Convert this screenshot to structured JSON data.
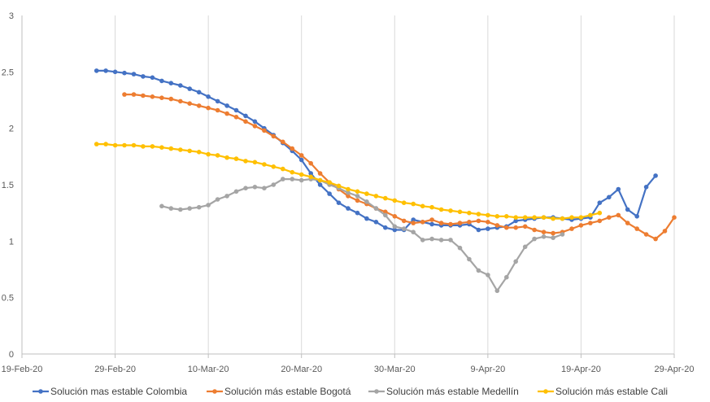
{
  "chart_data": {
    "type": "line",
    "title": "",
    "xlabel": "",
    "ylabel": "",
    "x_axis": {
      "start": "2020-02-19",
      "end": "2020-04-29",
      "tick_dates": [
        "2020-02-19",
        "2020-02-29",
        "2020-03-10",
        "2020-03-20",
        "2020-03-30",
        "2020-04-09",
        "2020-04-19",
        "2020-04-29"
      ],
      "tick_labels": [
        "19-Feb-20",
        "29-Feb-20",
        "10-Mar-20",
        "20-Mar-20",
        "30-Mar-20",
        "9-Apr-20",
        "19-Apr-20",
        "29-Apr-20"
      ]
    },
    "ylim": [
      0,
      3
    ],
    "y_ticks": [
      0,
      0.5,
      1,
      1.5,
      2,
      2.5,
      3
    ],
    "y_tick_labels": [
      "0",
      "0.5",
      "1",
      "1.5",
      "2",
      "2.5",
      "3"
    ],
    "grid": "vertical",
    "legend_position": "bottom",
    "series": [
      {
        "name": "Solución mas estable Colombia",
        "color": "#4472C4",
        "start_date": "2020-02-27",
        "values": [
          2.51,
          2.51,
          2.5,
          2.49,
          2.48,
          2.46,
          2.45,
          2.42,
          2.4,
          2.38,
          2.35,
          2.32,
          2.28,
          2.24,
          2.2,
          2.16,
          2.11,
          2.06,
          2.0,
          1.94,
          1.87,
          1.8,
          1.72,
          1.6,
          1.5,
          1.42,
          1.34,
          1.29,
          1.25,
          1.2,
          1.17,
          1.12,
          1.1,
          1.1,
          1.19,
          1.17,
          1.15,
          1.14,
          1.14,
          1.14,
          1.15,
          1.1,
          1.11,
          1.12,
          1.13,
          1.18,
          1.19,
          1.2,
          1.21,
          1.21,
          1.2,
          1.19,
          1.2,
          1.21,
          1.34,
          1.39,
          1.46,
          1.28,
          1.22,
          1.48,
          1.58
        ]
      },
      {
        "name": "Solución más estable Bogotá",
        "color": "#ED7D31",
        "start_date": "2020-03-01",
        "values": [
          2.3,
          2.3,
          2.29,
          2.28,
          2.27,
          2.26,
          2.24,
          2.22,
          2.2,
          2.18,
          2.16,
          2.13,
          2.1,
          2.06,
          2.02,
          1.98,
          1.93,
          1.88,
          1.82,
          1.76,
          1.69,
          1.6,
          1.52,
          1.46,
          1.4,
          1.36,
          1.33,
          1.29,
          1.26,
          1.22,
          1.18,
          1.16,
          1.17,
          1.19,
          1.16,
          1.15,
          1.16,
          1.17,
          1.18,
          1.17,
          1.14,
          1.12,
          1.12,
          1.13,
          1.1,
          1.08,
          1.07,
          1.08,
          1.11,
          1.14,
          1.16,
          1.18,
          1.21,
          1.23,
          1.16,
          1.11,
          1.06,
          1.02,
          1.09,
          1.21
        ]
      },
      {
        "name": "Solución más estable Medellín",
        "color": "#A5A5A5",
        "start_date": "2020-03-05",
        "values": [
          1.31,
          1.29,
          1.28,
          1.29,
          1.3,
          1.32,
          1.37,
          1.4,
          1.44,
          1.47,
          1.48,
          1.47,
          1.5,
          1.55,
          1.55,
          1.54,
          1.55,
          1.54,
          1.5,
          1.47,
          1.43,
          1.4,
          1.35,
          1.29,
          1.23,
          1.13,
          1.11,
          1.08,
          1.01,
          1.02,
          1.01,
          1.01,
          0.94,
          0.84,
          0.74,
          0.7,
          0.56,
          0.68,
          0.82,
          0.95,
          1.02,
          1.04,
          1.03,
          1.06
        ]
      },
      {
        "name": "Solución más estable Cali",
        "color": "#FFC000",
        "start_date": "2020-02-27",
        "values": [
          1.86,
          1.86,
          1.85,
          1.85,
          1.85,
          1.84,
          1.84,
          1.83,
          1.82,
          1.81,
          1.8,
          1.79,
          1.77,
          1.76,
          1.74,
          1.73,
          1.71,
          1.7,
          1.68,
          1.66,
          1.64,
          1.61,
          1.59,
          1.57,
          1.54,
          1.52,
          1.49,
          1.46,
          1.44,
          1.42,
          1.4,
          1.38,
          1.36,
          1.34,
          1.33,
          1.31,
          1.3,
          1.28,
          1.27,
          1.26,
          1.25,
          1.24,
          1.23,
          1.22,
          1.22,
          1.21,
          1.21,
          1.21,
          1.21,
          1.2,
          1.2,
          1.21,
          1.21,
          1.23,
          1.25
        ]
      }
    ]
  }
}
